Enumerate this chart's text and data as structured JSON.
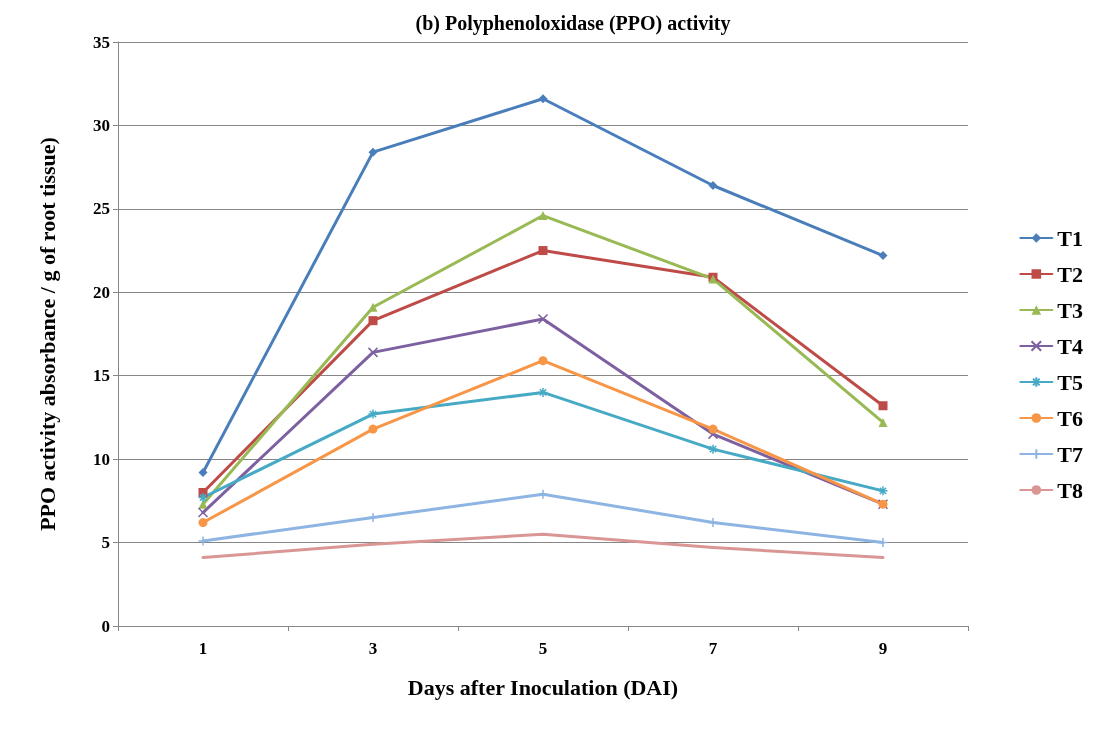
{
  "chart_data": {
    "type": "line",
    "title": "(b) Polyphenoloxidase (PPO) activity",
    "xlabel": "Days after Inoculation (DAI)",
    "ylabel": "PPO activity absorbance / g of root tissue)",
    "categories": [
      "1",
      "3",
      "5",
      "7",
      "9"
    ],
    "series": [
      {
        "name": "T1",
        "color": "#4a7ebb",
        "marker": "diamond",
        "values": [
          9.2,
          28.4,
          31.6,
          26.4,
          22.2
        ]
      },
      {
        "name": "T2",
        "color": "#be4b48",
        "marker": "square",
        "values": [
          8.0,
          18.3,
          22.5,
          20.9,
          13.2
        ]
      },
      {
        "name": "T3",
        "color": "#98b954",
        "marker": "triangle",
        "values": [
          7.3,
          19.1,
          24.6,
          20.8,
          12.2
        ]
      },
      {
        "name": "T4",
        "color": "#7d60a0",
        "marker": "cross",
        "values": [
          6.8,
          16.4,
          18.4,
          11.5,
          7.3
        ]
      },
      {
        "name": "T5",
        "color": "#46aac5",
        "marker": "cross",
        "values": [
          7.7,
          12.7,
          14.0,
          10.6,
          8.1
        ]
      },
      {
        "name": "T6",
        "color": "#f79646",
        "marker": "circle",
        "values": [
          6.2,
          11.8,
          15.9,
          11.8,
          7.3
        ]
      },
      {
        "name": "T7",
        "color": "#8eb4e3",
        "marker": "cross",
        "values": [
          5.1,
          6.5,
          7.9,
          6.2,
          5.0
        ]
      },
      {
        "name": "T8",
        "color": "#d99694",
        "marker": "none",
        "values": [
          4.1,
          4.9,
          5.5,
          4.7,
          4.1
        ]
      }
    ],
    "ylim": [
      0,
      35
    ],
    "yticks": [
      0,
      5,
      10,
      15,
      20,
      25,
      30,
      35
    ],
    "grid": "y",
    "legend": "right",
    "line_style": "solid"
  }
}
